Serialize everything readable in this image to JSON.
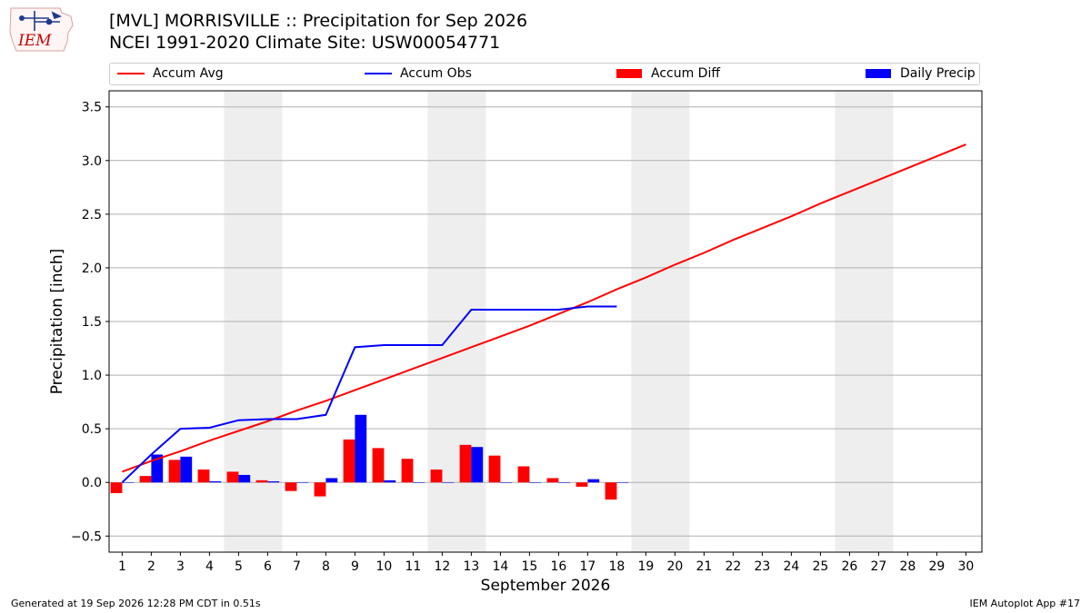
{
  "header": {
    "title_line1": "[MVL] MORRISVILLE :: Precipitation for Sep 2026",
    "title_line2": "NCEI 1991-2020 Climate Site: USW00054771",
    "logo_text": "IEM"
  },
  "footer": {
    "generated": "Generated at 19 Sep 2026 12:28 PM CDT in 0.51s",
    "app": "IEM Autoplot App #17"
  },
  "colors": {
    "avg": "#ff0000",
    "obs": "#0000ff",
    "diff": "#ff0000",
    "daily": "#0000ff",
    "weekend_shade": "#eeeeee",
    "grid": "#b0b0b0"
  },
  "chart_data": {
    "type": "bar",
    "xlabel": "September 2026",
    "ylabel": "Precipitation [inch]",
    "ylim": [
      -0.65,
      3.65
    ],
    "yticks": [
      -0.5,
      0.0,
      0.5,
      1.0,
      1.5,
      2.0,
      2.5,
      3.0,
      3.5
    ],
    "ytick_labels": [
      "−0.5",
      "0.0",
      "0.5",
      "1.0",
      "1.5",
      "2.0",
      "2.5",
      "3.0",
      "3.5"
    ],
    "xlim": [
      0.55,
      30.55
    ],
    "days": [
      1,
      2,
      3,
      4,
      5,
      6,
      7,
      8,
      9,
      10,
      11,
      12,
      13,
      14,
      15,
      16,
      17,
      18,
      19,
      20,
      21,
      22,
      23,
      24,
      25,
      26,
      27,
      28,
      29,
      30
    ],
    "grid": "horizontal",
    "legend_placement": "top",
    "weekend_shading": [
      [
        5,
        6
      ],
      [
        12,
        13
      ],
      [
        19,
        20
      ],
      [
        26,
        27
      ]
    ],
    "legend": [
      "Accum Avg",
      "Accum Obs",
      "Accum Diff",
      "Daily Precip"
    ],
    "series": [
      {
        "name": "Accum Avg",
        "kind": "line",
        "values": [
          0.1,
          0.2,
          0.29,
          0.39,
          0.48,
          0.57,
          0.67,
          0.76,
          0.86,
          0.96,
          1.06,
          1.16,
          1.26,
          1.36,
          1.46,
          1.57,
          1.68,
          1.8,
          1.91,
          2.03,
          2.14,
          2.26,
          2.37,
          2.48,
          2.6,
          2.71,
          2.82,
          2.93,
          3.04,
          3.15
        ]
      },
      {
        "name": "Accum Obs",
        "kind": "line",
        "values": [
          0.0,
          0.26,
          0.5,
          0.51,
          0.58,
          0.59,
          0.59,
          0.63,
          1.26,
          1.28,
          1.28,
          1.28,
          1.61,
          1.61,
          1.61,
          1.61,
          1.64,
          1.64
        ]
      },
      {
        "name": "Accum Diff",
        "kind": "bar",
        "values": [
          -0.1,
          0.06,
          0.21,
          0.12,
          0.1,
          0.02,
          -0.08,
          -0.13,
          0.4,
          0.32,
          0.22,
          0.12,
          0.35,
          0.25,
          0.15,
          0.04,
          -0.04,
          -0.16
        ]
      },
      {
        "name": "Daily Precip",
        "kind": "bar",
        "values": [
          0.0,
          0.26,
          0.24,
          0.01,
          0.07,
          0.01,
          0.0,
          0.04,
          0.63,
          0.02,
          0.0,
          0.0,
          0.33,
          0.0,
          0.0,
          0.0,
          0.03,
          0.0
        ]
      }
    ]
  }
}
